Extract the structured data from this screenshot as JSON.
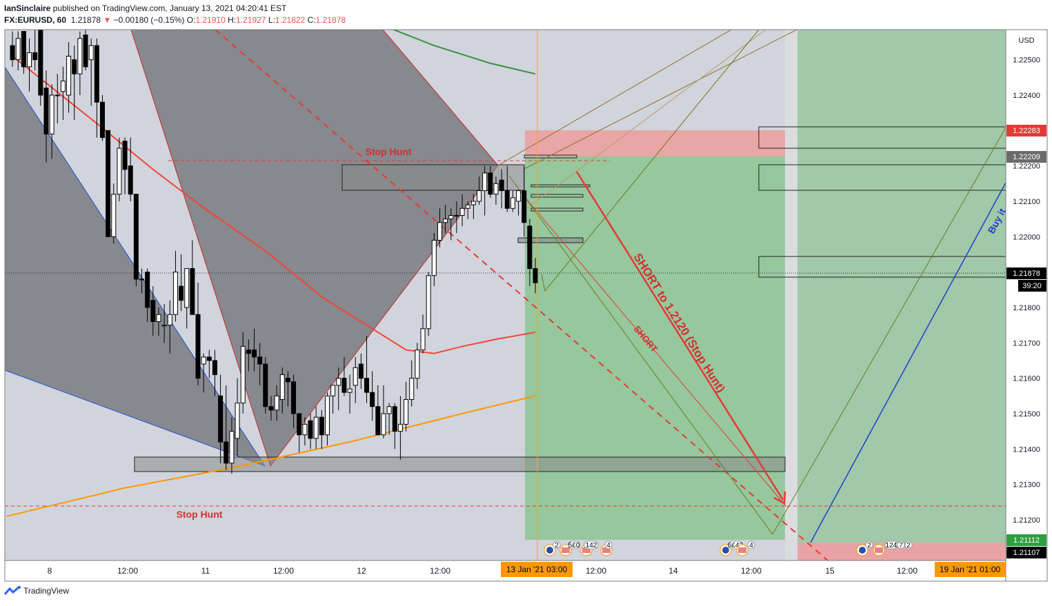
{
  "header": {
    "author": "IanSinclaire",
    "published_text": "published on TradingView.com, January 13, 2021 04:20:41 EST",
    "symbol": "FX:EURUSD, 60",
    "last": "1.21878",
    "change": "−0.00180 (−0.15%)",
    "open_label": "O:",
    "open": "1.21910",
    "high_label": "H:",
    "high": "1.21927",
    "low_label": "L:",
    "low": "1.21822",
    "close_label": "C:",
    "close": "1.21878"
  },
  "footer": {
    "brand": "TradingView"
  },
  "colors": {
    "bg": "#d1d4dc",
    "up": "#ffffff",
    "down": "#000000",
    "red_line": "#f44336",
    "orange_line": "#ff9800",
    "green_line": "#388e3c",
    "target_zone": "#66bb6a",
    "stop_zone": "#ef9a9a",
    "blue_line": "#1e3fc9",
    "wedge": "#7a7b80"
  },
  "chart_data": {
    "type": "candlestick",
    "symbol": "FX:EURUSD",
    "timeframe": "60",
    "currency": "USD",
    "y_ticks": [
      "1.22500",
      "1.22400",
      "1.22300",
      "1.22200",
      "1.22100",
      "1.22000",
      "1.21900",
      "1.21800",
      "1.21700",
      "1.21600",
      "1.21500",
      "1.21400",
      "1.21300",
      "1.21200",
      "1.21100"
    ],
    "ylim": [
      1.21085,
      1.22585
    ],
    "x_ticks": [
      "8",
      "12:00",
      "11",
      "12:00",
      "12",
      "12:00",
      "14",
      "12:00",
      "15",
      "12:00"
    ],
    "time_marker": "13 Jan '21  03:00",
    "time_marker_right": "19 Jan '21  01:00",
    "price_labels": {
      "current": "1.21878",
      "countdown": "39:20",
      "stop": "1.22283",
      "entry": "1.22209",
      "target_a": "1.21112",
      "target_b": "1.21107"
    },
    "annotations": {
      "stop_hunt_top": "Stop Hunt",
      "stop_hunt_bottom": "Stop Hunt",
      "short_main": "SHORT to 1.2120 (Stop Hunt)",
      "short_small": "SHORT",
      "buy": "Buy it"
    },
    "event_labels": [
      "2",
      "5£0",
      "142",
      "4",
      "6£42",
      "4",
      "2",
      "124",
      "7",
      "2"
    ],
    "candles": [
      {
        "o": 1.2254,
        "h": 1.2258,
        "l": 1.2248,
        "c": 1.225
      },
      {
        "o": 1.225,
        "h": 1.2258,
        "l": 1.2247,
        "c": 1.2256
      },
      {
        "o": 1.2258,
        "h": 1.2258,
        "l": 1.2246,
        "c": 1.2248
      },
      {
        "o": 1.2248,
        "h": 1.2256,
        "l": 1.2241,
        "c": 1.2252
      },
      {
        "o": 1.2252,
        "h": 1.226,
        "l": 1.2247,
        "c": 1.225
      },
      {
        "o": 1.2262,
        "h": 1.2268,
        "l": 1.2237,
        "c": 1.224
      },
      {
        "o": 1.2242,
        "h": 1.2247,
        "l": 1.2221,
        "c": 1.2229
      },
      {
        "o": 1.2229,
        "h": 1.2243,
        "l": 1.2222,
        "c": 1.224
      },
      {
        "o": 1.224,
        "h": 1.2246,
        "l": 1.2232,
        "c": 1.224
      },
      {
        "o": 1.2241,
        "h": 1.2248,
        "l": 1.2233,
        "c": 1.2244
      },
      {
        "o": 1.224,
        "h": 1.2255,
        "l": 1.2235,
        "c": 1.2251
      },
      {
        "o": 1.225,
        "h": 1.2254,
        "l": 1.2233,
        "c": 1.2246
      },
      {
        "o": 1.2246,
        "h": 1.2258,
        "l": 1.224,
        "c": 1.2256
      },
      {
        "o": 1.2257,
        "h": 1.226,
        "l": 1.2247,
        "c": 1.2248
      },
      {
        "o": 1.225,
        "h": 1.2256,
        "l": 1.2237,
        "c": 1.2254
      },
      {
        "o": 1.2254,
        "h": 1.2256,
        "l": 1.2228,
        "c": 1.2238
      },
      {
        "o": 1.2238,
        "h": 1.224,
        "l": 1.2227,
        "c": 1.2228
      },
      {
        "o": 1.223,
        "h": 1.223,
        "l": 1.22,
        "c": 1.22
      },
      {
        "o": 1.22,
        "h": 1.2215,
        "l": 1.2198,
        "c": 1.2212
      },
      {
        "o": 1.2212,
        "h": 1.2228,
        "l": 1.221,
        "c": 1.2225
      },
      {
        "o": 1.2227,
        "h": 1.2228,
        "l": 1.2212,
        "c": 1.2219
      },
      {
        "o": 1.222,
        "h": 1.2228,
        "l": 1.221,
        "c": 1.2212
      },
      {
        "o": 1.2212,
        "h": 1.2212,
        "l": 1.2186,
        "c": 1.2188
      },
      {
        "o": 1.2188,
        "h": 1.2191,
        "l": 1.2184,
        "c": 1.2188
      },
      {
        "o": 1.219,
        "h": 1.2191,
        "l": 1.2176,
        "c": 1.218
      },
      {
        "o": 1.2182,
        "h": 1.2186,
        "l": 1.2172,
        "c": 1.2176
      },
      {
        "o": 1.2176,
        "h": 1.218,
        "l": 1.2172,
        "c": 1.2178
      },
      {
        "o": 1.2175,
        "h": 1.2181,
        "l": 1.217,
        "c": 1.2175
      },
      {
        "o": 1.2175,
        "h": 1.2182,
        "l": 1.2167,
        "c": 1.2178
      },
      {
        "o": 1.2178,
        "h": 1.2196,
        "l": 1.2176,
        "c": 1.219
      },
      {
        "o": 1.2186,
        "h": 1.2195,
        "l": 1.2179,
        "c": 1.2182
      },
      {
        "o": 1.218,
        "h": 1.219,
        "l": 1.2174,
        "c": 1.2191
      },
      {
        "o": 1.2191,
        "h": 1.2199,
        "l": 1.2178,
        "c": 1.2178
      },
      {
        "o": 1.2178,
        "h": 1.2187,
        "l": 1.2158,
        "c": 1.216
      },
      {
        "o": 1.2164,
        "h": 1.2167,
        "l": 1.2156,
        "c": 1.2166
      },
      {
        "o": 1.2166,
        "h": 1.2168,
        "l": 1.216,
        "c": 1.2165
      },
      {
        "o": 1.2165,
        "h": 1.2168,
        "l": 1.2155,
        "c": 1.2161
      },
      {
        "o": 1.2155,
        "h": 1.2161,
        "l": 1.2136,
        "c": 1.2142
      },
      {
        "o": 1.2142,
        "h": 1.2158,
        "l": 1.2134,
        "c": 1.2136
      },
      {
        "o": 1.2136,
        "h": 1.2149,
        "l": 1.2133,
        "c": 1.2145
      },
      {
        "o": 1.2143,
        "h": 1.216,
        "l": 1.2138,
        "c": 1.2153
      },
      {
        "o": 1.2153,
        "h": 1.2173,
        "l": 1.215,
        "c": 1.2169
      },
      {
        "o": 1.2168,
        "h": 1.2171,
        "l": 1.2162,
        "c": 1.2167
      },
      {
        "o": 1.2168,
        "h": 1.2174,
        "l": 1.2162,
        "c": 1.2166
      },
      {
        "o": 1.2166,
        "h": 1.217,
        "l": 1.2158,
        "c": 1.2164
      },
      {
        "o": 1.2164,
        "h": 1.2166,
        "l": 1.215,
        "c": 1.2152
      },
      {
        "o": 1.2152,
        "h": 1.2155,
        "l": 1.2148,
        "c": 1.2151
      },
      {
        "o": 1.2151,
        "h": 1.2158,
        "l": 1.2148,
        "c": 1.2155
      },
      {
        "o": 1.2154,
        "h": 1.2163,
        "l": 1.215,
        "c": 1.2161
      },
      {
        "o": 1.216,
        "h": 1.2162,
        "l": 1.2152,
        "c": 1.2159
      },
      {
        "o": 1.2159,
        "h": 1.2161,
        "l": 1.2146,
        "c": 1.215
      },
      {
        "o": 1.215,
        "h": 1.215,
        "l": 1.2139,
        "c": 1.2144
      },
      {
        "o": 1.2144,
        "h": 1.2149,
        "l": 1.2141,
        "c": 1.2147
      },
      {
        "o": 1.2148,
        "h": 1.215,
        "l": 1.214,
        "c": 1.2143
      },
      {
        "o": 1.2143,
        "h": 1.2152,
        "l": 1.214,
        "c": 1.2149
      },
      {
        "o": 1.2149,
        "h": 1.2151,
        "l": 1.214,
        "c": 1.2144
      },
      {
        "o": 1.2144,
        "h": 1.2156,
        "l": 1.2141,
        "c": 1.2155
      },
      {
        "o": 1.2155,
        "h": 1.2158,
        "l": 1.215,
        "c": 1.2158
      },
      {
        "o": 1.2158,
        "h": 1.2163,
        "l": 1.2151,
        "c": 1.216
      },
      {
        "o": 1.216,
        "h": 1.2166,
        "l": 1.2155,
        "c": 1.2156
      },
      {
        "o": 1.2156,
        "h": 1.2161,
        "l": 1.215,
        "c": 1.2157
      },
      {
        "o": 1.2158,
        "h": 1.2166,
        "l": 1.2153,
        "c": 1.2163
      },
      {
        "o": 1.2164,
        "h": 1.2167,
        "l": 1.2157,
        "c": 1.216
      },
      {
        "o": 1.216,
        "h": 1.2172,
        "l": 1.2153,
        "c": 1.2156
      },
      {
        "o": 1.2156,
        "h": 1.2162,
        "l": 1.2148,
        "c": 1.2152
      },
      {
        "o": 1.2152,
        "h": 1.2158,
        "l": 1.2145,
        "c": 1.2144
      },
      {
        "o": 1.2144,
        "h": 1.2158,
        "l": 1.2143,
        "c": 1.215
      },
      {
        "o": 1.215,
        "h": 1.2153,
        "l": 1.2144,
        "c": 1.2152
      },
      {
        "o": 1.2152,
        "h": 1.2153,
        "l": 1.214,
        "c": 1.2145
      },
      {
        "o": 1.2145,
        "h": 1.2155,
        "l": 1.2137,
        "c": 1.2147
      },
      {
        "o": 1.2147,
        "h": 1.2159,
        "l": 1.2145,
        "c": 1.2154
      },
      {
        "o": 1.2154,
        "h": 1.2165,
        "l": 1.2152,
        "c": 1.216
      },
      {
        "o": 1.216,
        "h": 1.217,
        "l": 1.2157,
        "c": 1.2168
      },
      {
        "o": 1.2168,
        "h": 1.2178,
        "l": 1.2167,
        "c": 1.2174
      },
      {
        "o": 1.2174,
        "h": 1.219,
        "l": 1.2172,
        "c": 1.2189
      },
      {
        "o": 1.2189,
        "h": 1.2201,
        "l": 1.2186,
        "c": 1.2199
      },
      {
        "o": 1.2199,
        "h": 1.2208,
        "l": 1.2197,
        "c": 1.2204
      },
      {
        "o": 1.2204,
        "h": 1.2209,
        "l": 1.2201,
        "c": 1.2205
      },
      {
        "o": 1.2205,
        "h": 1.2208,
        "l": 1.2199,
        "c": 1.2206
      },
      {
        "o": 1.2206,
        "h": 1.221,
        "l": 1.2201,
        "c": 1.2206
      },
      {
        "o": 1.2206,
        "h": 1.2212,
        "l": 1.2203,
        "c": 1.2208
      },
      {
        "o": 1.2208,
        "h": 1.221,
        "l": 1.2205,
        "c": 1.2209
      },
      {
        "o": 1.2209,
        "h": 1.2212,
        "l": 1.2205,
        "c": 1.221
      },
      {
        "o": 1.221,
        "h": 1.2217,
        "l": 1.2209,
        "c": 1.2213
      },
      {
        "o": 1.2213,
        "h": 1.222,
        "l": 1.2206,
        "c": 1.2218
      },
      {
        "o": 1.2218,
        "h": 1.222,
        "l": 1.2211,
        "c": 1.2212
      },
      {
        "o": 1.2212,
        "h": 1.2217,
        "l": 1.2209,
        "c": 1.2215
      },
      {
        "o": 1.2216,
        "h": 1.2219,
        "l": 1.2208,
        "c": 1.2213
      },
      {
        "o": 1.2213,
        "h": 1.222,
        "l": 1.2207,
        "c": 1.2208
      },
      {
        "o": 1.2208,
        "h": 1.2213,
        "l": 1.2207,
        "c": 1.2211
      },
      {
        "o": 1.221,
        "h": 1.2213,
        "l": 1.2206,
        "c": 1.2213
      },
      {
        "o": 1.2213,
        "h": 1.222,
        "l": 1.22,
        "c": 1.2204
      },
      {
        "o": 1.2203,
        "h": 1.2205,
        "l": 1.2186,
        "c": 1.2191
      },
      {
        "o": 1.2191,
        "h": 1.2194,
        "l": 1.2184,
        "c": 1.2187
      }
    ],
    "overlays": {
      "red_ma": [
        [
          0,
          1.2251
        ],
        [
          15,
          1.2232
        ],
        [
          25,
          1.2219
        ],
        [
          35,
          1.2207
        ],
        [
          45,
          1.2196
        ],
        [
          55,
          1.2183
        ],
        [
          60,
          1.2178
        ],
        [
          70,
          1.2168
        ],
        [
          75,
          1.2167
        ],
        [
          80,
          1.2169
        ],
        [
          86,
          1.2171
        ],
        [
          93,
          1.2173
        ]
      ],
      "orange_ma": [
        [
          -1,
          1.2121
        ],
        [
          20,
          1.2129
        ],
        [
          40,
          1.2135
        ],
        [
          60,
          1.2142
        ],
        [
          80,
          1.215
        ],
        [
          93,
          1.2155
        ]
      ],
      "green_ma": [
        [
          67,
          1.2259
        ],
        [
          75,
          1.2254
        ],
        [
          85,
          1.2249
        ],
        [
          93,
          1.2246
        ]
      ]
    }
  }
}
